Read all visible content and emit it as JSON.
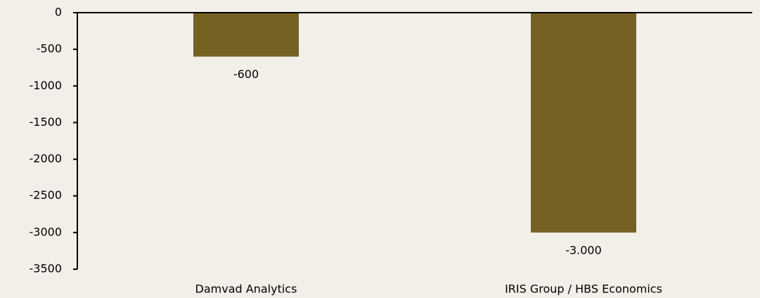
{
  "chart_data": {
    "type": "bar",
    "categories": [
      "Damvad Analytics",
      "IRIS Group / HBS Economics"
    ],
    "values": [
      -600,
      -3000
    ],
    "value_labels": [
      "-600",
      "-3.000"
    ],
    "color": "#756121",
    "ylim": [
      -3500,
      0
    ],
    "yticks": [
      0,
      -500,
      -1000,
      -1500,
      -2000,
      -2500,
      -3000,
      -3500
    ],
    "grid": false
  }
}
